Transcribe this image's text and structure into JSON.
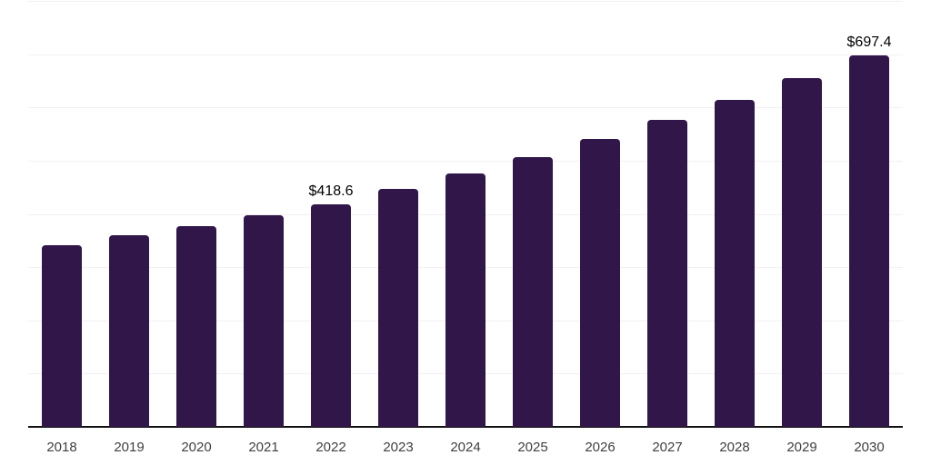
{
  "chart_data": {
    "type": "bar",
    "title": "",
    "xlabel": "",
    "ylabel": "",
    "categories": [
      "2018",
      "2019",
      "2020",
      "2021",
      "2022",
      "2023",
      "2024",
      "2025",
      "2026",
      "2027",
      "2028",
      "2029",
      "2030"
    ],
    "values": [
      341.4,
      359.2,
      377.8,
      397.5,
      418.6,
      446.2,
      475.6,
      506.9,
      540.3,
      575.9,
      613.9,
      654.3,
      697.4
    ],
    "point_labels": [
      null,
      null,
      null,
      null,
      "$418.6",
      null,
      null,
      null,
      null,
      null,
      null,
      null,
      "$697.4"
    ],
    "ylim": [
      0,
      800
    ],
    "gridline_step": 100,
    "grid": "horizontal-only",
    "legend": "none",
    "y_axis_labels_visible": false
  },
  "colors": {
    "bar": "#31164a",
    "gridline": "#f1f1f3",
    "axis_line": "#111111",
    "tick_label": "#404040",
    "point_label": "#000000",
    "background": "#ffffff"
  }
}
